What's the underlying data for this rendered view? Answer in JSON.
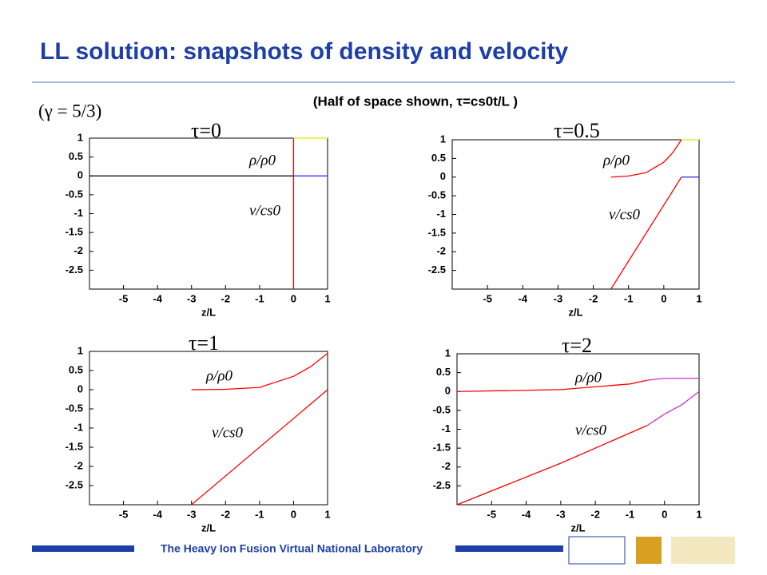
{
  "slide": {
    "title": "LL solution: snapshots of density and velocity",
    "subtitle": "(Half of space shown, τ=cs0t/L )",
    "note": "(γ = 5/3)",
    "footer": "The Heavy Ion Fusion Virtual National Laboratory"
  },
  "chart_data": [
    {
      "type": "line",
      "title": "τ=0",
      "xlabel": "z/L",
      "xlim": [
        -6,
        1
      ],
      "ylim": [
        -3,
        1
      ],
      "xticks": [
        -5,
        -4,
        -3,
        -2,
        -1,
        0,
        1
      ],
      "yticks": [
        1,
        0.5,
        0,
        -0.5,
        -1,
        -1.5,
        -2,
        -2.5
      ],
      "annotations": [
        "ρ/ρ0",
        "v/cs0"
      ],
      "series": [
        {
          "color": "#000000",
          "x": [
            -6,
            0
          ],
          "values": [
            0,
            0
          ]
        },
        {
          "color": "#ff0000",
          "x": [
            0,
            0
          ],
          "values": [
            -3,
            1
          ]
        },
        {
          "color": "#e8e800",
          "x": [
            0,
            1
          ],
          "values": [
            1,
            1
          ]
        },
        {
          "color": "#2020ff",
          "x": [
            0,
            1
          ],
          "values": [
            0,
            0
          ]
        }
      ]
    },
    {
      "type": "line",
      "title": "τ=0.5",
      "xlabel": "z/L",
      "xlim": [
        -6,
        1
      ],
      "ylim": [
        -3,
        1
      ],
      "xticks": [
        -5,
        -4,
        -3,
        -2,
        -1,
        0,
        1
      ],
      "yticks": [
        1,
        0.5,
        0,
        -0.5,
        -1,
        -1.5,
        -2,
        -2.5
      ],
      "annotations": [
        "ρ/ρ0",
        "v/cs0"
      ],
      "series": [
        {
          "color": "#ff0000",
          "x": [
            -1.5,
            -1,
            -0.5,
            0,
            0.25,
            0.5
          ],
          "values": [
            0,
            0.03,
            0.12,
            0.4,
            0.65,
            1
          ]
        },
        {
          "color": "#ff0000",
          "x": [
            -1.5,
            0.5
          ],
          "values": [
            -3,
            0
          ]
        },
        {
          "color": "#e8e800",
          "x": [
            0.5,
            1
          ],
          "values": [
            1,
            1
          ]
        },
        {
          "color": "#2020ff",
          "x": [
            0.5,
            1
          ],
          "values": [
            0,
            0
          ]
        }
      ]
    },
    {
      "type": "line",
      "title": "τ=1",
      "xlabel": "z/L",
      "xlim": [
        -6,
        1
      ],
      "ylim": [
        -3,
        1
      ],
      "xticks": [
        -5,
        -4,
        -3,
        -2,
        -1,
        0,
        1
      ],
      "yticks": [
        1,
        0.5,
        0,
        -0.5,
        -1,
        -1.5,
        -2,
        -2.5
      ],
      "annotations": [
        "ρ/ρ0",
        "v/cs0"
      ],
      "series": [
        {
          "color": "#ff0000",
          "x": [
            -3,
            -2,
            -1,
            0,
            0.5,
            1
          ],
          "values": [
            0,
            0.01,
            0.06,
            0.35,
            0.6,
            0.95
          ]
        },
        {
          "color": "#ff0000",
          "x": [
            -3,
            1
          ],
          "values": [
            -3,
            0
          ]
        }
      ]
    },
    {
      "type": "line",
      "title": "τ=2",
      "xlabel": "z/L",
      "xlim": [
        -6,
        1
      ],
      "ylim": [
        -3,
        1
      ],
      "xticks": [
        -5,
        -4,
        -3,
        -2,
        -1,
        0,
        1
      ],
      "yticks": [
        1,
        0.5,
        0,
        -0.5,
        -1,
        -1.5,
        -2,
        -2.5
      ],
      "annotations": [
        "ρ/ρ0",
        "v/cs0"
      ],
      "series": [
        {
          "color": "#ff0000",
          "x": [
            -6,
            -3,
            -1,
            -0.5
          ],
          "values": [
            0,
            0.05,
            0.2,
            0.3
          ]
        },
        {
          "color": "#cc33cc",
          "x": [
            -0.5,
            0,
            1
          ],
          "values": [
            0.3,
            0.35,
            0.35
          ]
        },
        {
          "color": "#ff0000",
          "x": [
            -6,
            -3,
            -0.5
          ],
          "values": [
            -3,
            -1.9,
            -0.9
          ]
        },
        {
          "color": "#cc33cc",
          "x": [
            -0.5,
            0,
            0.5,
            1
          ],
          "values": [
            -0.9,
            -0.6,
            -0.35,
            0
          ]
        }
      ]
    }
  ]
}
